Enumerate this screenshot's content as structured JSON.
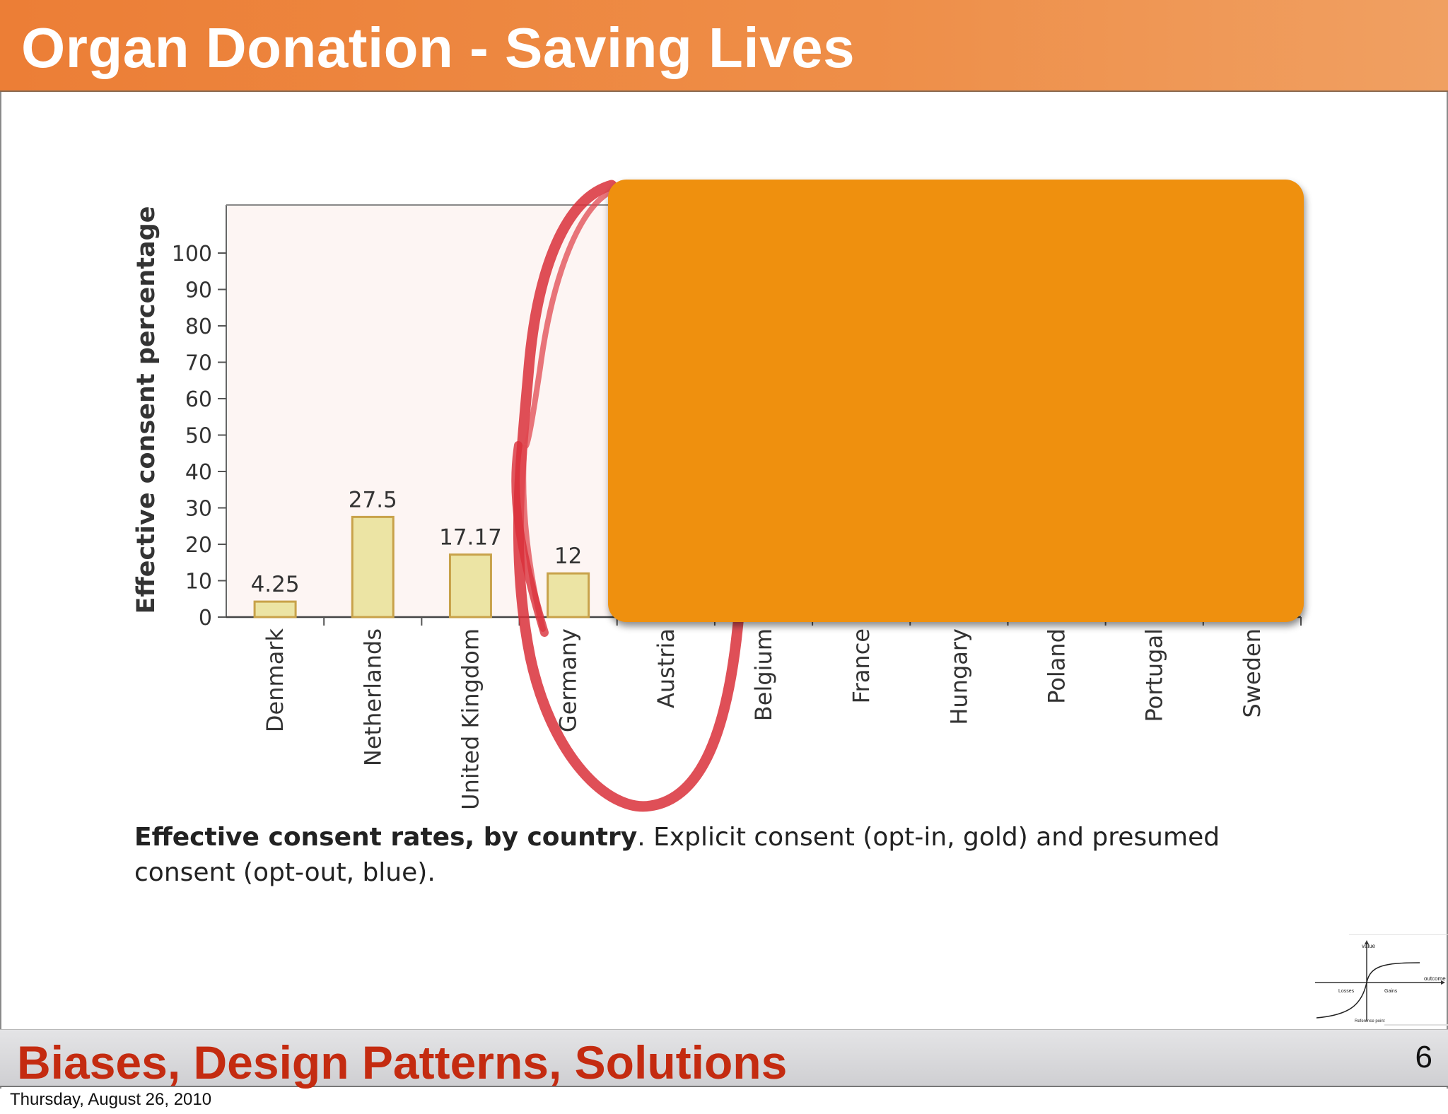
{
  "header": {
    "title": "Organ Donation - Saving Lives"
  },
  "footer": {
    "title": "Biases, Design Patterns, Solutions",
    "page_number": "6"
  },
  "date_stamp": "Thursday, August 26, 2010",
  "caption": {
    "bold": "Effective consent rates, by country",
    "rest": ". Explicit consent (opt-in, gold) and presumed consent (opt-out, blue)."
  },
  "colors": {
    "header": "#ec7e36",
    "overlay": "#ef900e",
    "bar_gold": "#ece4a4",
    "annotation": "#d9303a",
    "footer_text": "#c42b10"
  },
  "chart_data": {
    "type": "bar",
    "categories": [
      "Denmark",
      "Netherlands",
      "United Kingdom",
      "Germany",
      "Austria",
      "Belgium",
      "France",
      "Hungary",
      "Poland",
      "Portugal",
      "Sweden"
    ],
    "values": [
      4.25,
      27.5,
      17.17,
      12,
      null,
      null,
      null,
      null,
      null,
      null,
      null
    ],
    "data_labels": [
      "4.25",
      "27.5",
      "17.17",
      "12",
      "",
      "",
      "",
      "",
      "",
      "",
      ""
    ],
    "ylabel": "Effective consent percentage",
    "xlabel": "",
    "ylim": [
      0,
      100
    ],
    "yticks": [
      0,
      10,
      20,
      30,
      40,
      50,
      60,
      70,
      80,
      90,
      100
    ],
    "grid": false,
    "note": ""
  },
  "mini_graph": {
    "labels": {
      "value": "value",
      "outcome": "outcome",
      "losses": "Losses",
      "gains": "Gains",
      "reference": "Reference point"
    }
  }
}
